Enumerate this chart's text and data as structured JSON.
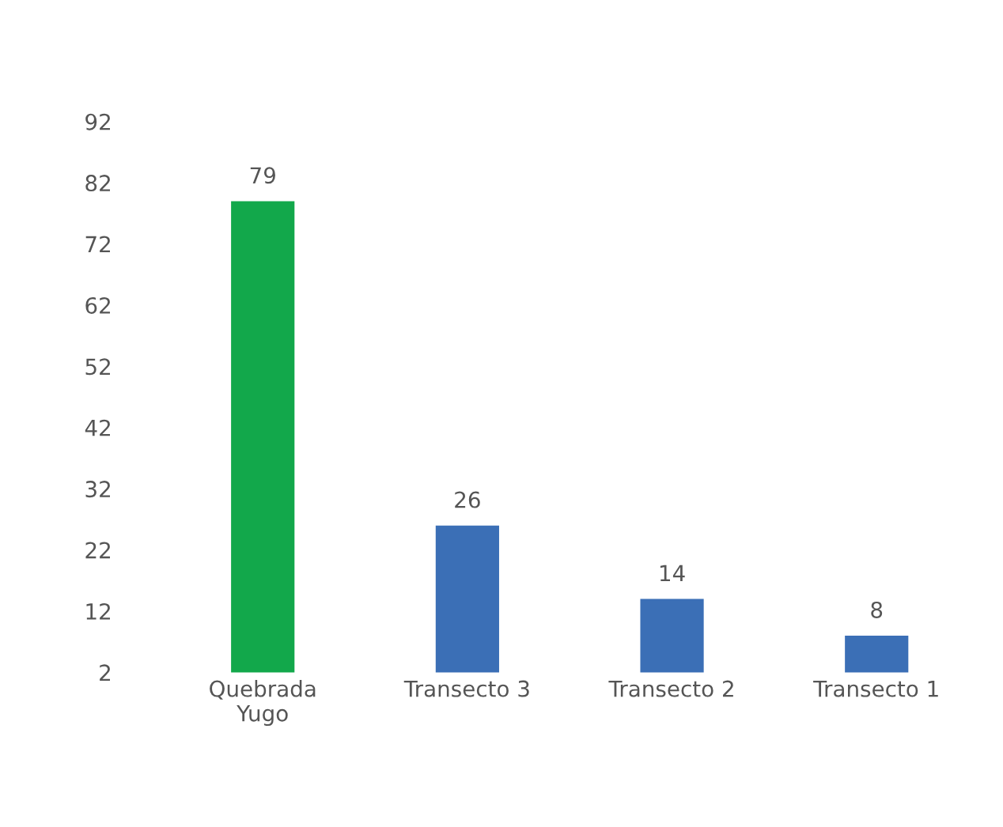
{
  "chart_data": {
    "type": "bar",
    "categories": [
      "Quebrada\nYugo",
      "Transecto 3",
      "Transecto 2",
      "Transecto 1"
    ],
    "values": [
      79,
      26,
      14,
      8
    ],
    "colors": [
      "#12a84b",
      "#3b6fb6",
      "#3b6fb6",
      "#3b6fb6"
    ],
    "ylim": [
      2,
      92
    ],
    "yticks": [
      2,
      12,
      22,
      32,
      42,
      52,
      62,
      72,
      82,
      92
    ],
    "data_labels": true,
    "grid": false,
    "legend": false
  }
}
